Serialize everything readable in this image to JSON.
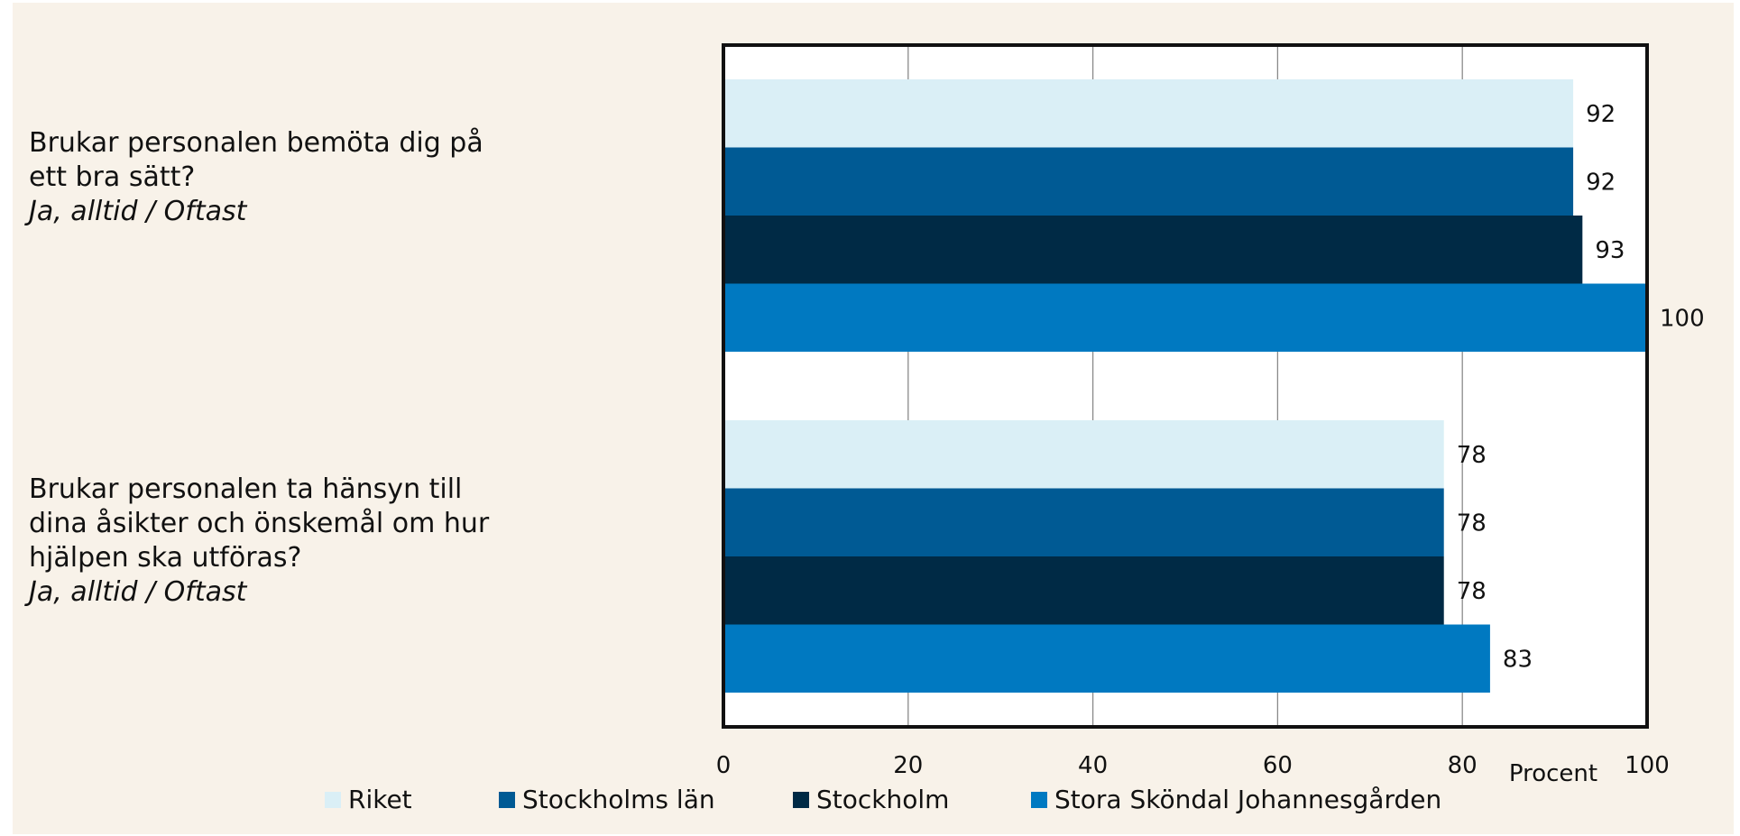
{
  "chart_data": {
    "type": "bar",
    "orientation": "horizontal",
    "categories": [
      {
        "question": "Brukar personalen bemöta dig på ett bra sätt?",
        "question_lines": [
          "Brukar personalen bemöta dig på",
          "ett bra sätt?"
        ],
        "sub": "Ja, alltid / Oftast"
      },
      {
        "question": "Brukar personalen ta hänsyn till dina åsikter och önskemål om hur hjälpen ska utföras?",
        "question_lines": [
          "Brukar personalen ta hänsyn till",
          "dina åsikter och önskemål om hur",
          "hjälpen ska utföras?"
        ],
        "sub": "Ja, alltid / Oftast"
      }
    ],
    "series": [
      {
        "name": "Riket",
        "color": "#daeff6",
        "values": [
          92,
          78
        ]
      },
      {
        "name": "Stockholms län",
        "color": "#005a94",
        "values": [
          92,
          78
        ]
      },
      {
        "name": "Stockholm",
        "color": "#002a45",
        "values": [
          93,
          78
        ]
      },
      {
        "name": "Stora Sköndal Johannesgården",
        "color": "#0079c1",
        "values": [
          100,
          83
        ]
      }
    ],
    "xlim": [
      0,
      100
    ],
    "xticks": [
      0,
      20,
      40,
      60,
      80,
      100
    ],
    "xlabel": "Procent",
    "grid": true,
    "legend_position": "bottom"
  }
}
